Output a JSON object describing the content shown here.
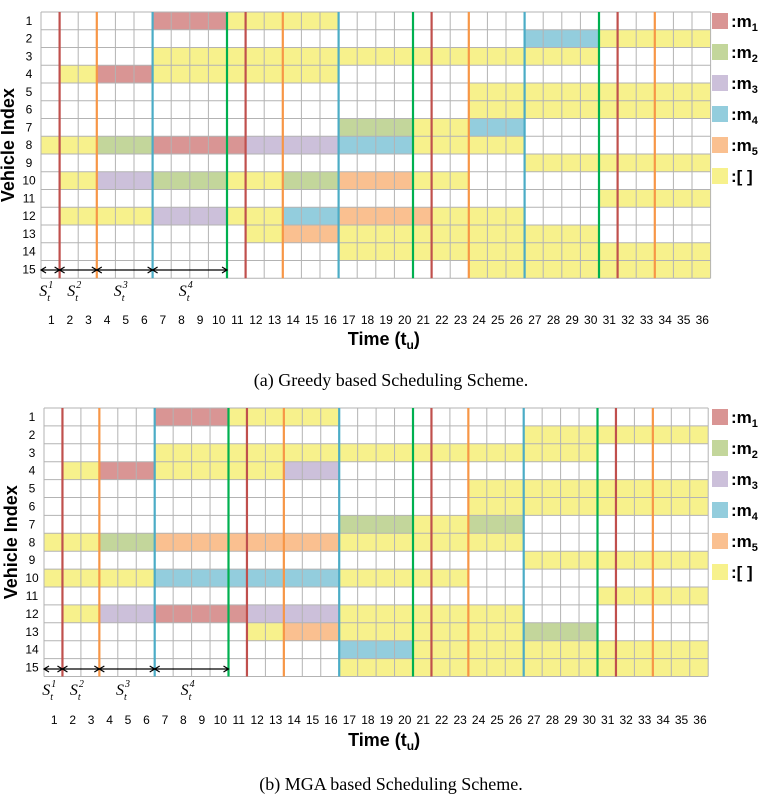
{
  "colors": {
    "m1": "#d99594",
    "m2": "#c3d69b",
    "m3": "#ccc0da",
    "m4": "#93cddd",
    "m5": "#fac090",
    "empty": "#f7f18c",
    "grid": "#b3b3b3",
    "dividers": [
      "#c0504d",
      "#f79646",
      "#4bacc6",
      "#00b050"
    ]
  },
  "legend": [
    {
      "key": "m1",
      "label": ":m",
      "sub": "1"
    },
    {
      "key": "m2",
      "label": ":m",
      "sub": "2"
    },
    {
      "key": "m3",
      "label": ":m",
      "sub": "3"
    },
    {
      "key": "m4",
      "label": ":m",
      "sub": "4"
    },
    {
      "key": "m5",
      "label": ":m",
      "sub": "5"
    },
    {
      "key": "empty",
      "label": ":[ ]",
      "sub": ""
    }
  ],
  "chart_data": [
    {
      "type": "heatmap",
      "caption": "(a) Greedy based Scheduling Scheme.",
      "xlabel": "Time (t",
      "xlabel_sub": "u",
      "xlabel_end": ")",
      "ylabel": "Vehicle Index",
      "x_ticks": [
        1,
        2,
        3,
        4,
        5,
        6,
        7,
        8,
        9,
        10,
        11,
        12,
        13,
        14,
        15,
        16,
        17,
        18,
        19,
        20,
        21,
        22,
        23,
        24,
        25,
        26,
        27,
        28,
        29,
        30,
        31,
        32,
        33,
        34,
        35,
        36
      ],
      "y_ticks": [
        1,
        2,
        3,
        4,
        5,
        6,
        7,
        8,
        9,
        10,
        11,
        12,
        13,
        14,
        15
      ],
      "dividers": [
        {
          "after": 1,
          "color": "red"
        },
        {
          "after": 3,
          "color": "orange"
        },
        {
          "after": 6,
          "color": "blue"
        },
        {
          "after": 10,
          "color": "green"
        },
        {
          "after": 11,
          "color": "red"
        },
        {
          "after": 13,
          "color": "orange"
        },
        {
          "after": 16,
          "color": "blue"
        },
        {
          "after": 20,
          "color": "green"
        },
        {
          "after": 21,
          "color": "red"
        },
        {
          "after": 23,
          "color": "orange"
        },
        {
          "after": 26,
          "color": "blue"
        },
        {
          "after": 30,
          "color": "green"
        },
        {
          "after": 31,
          "color": "red"
        },
        {
          "after": 33,
          "color": "orange"
        }
      ],
      "s_labels": [
        {
          "text": "S",
          "sup": "1",
          "sub": "t",
          "from": 1,
          "to": 1
        },
        {
          "text": "S",
          "sup": "2",
          "sub": "t",
          "from": 2,
          "to": 3
        },
        {
          "text": "S",
          "sup": "3",
          "sub": "t",
          "from": 4,
          "to": 6
        },
        {
          "text": "S",
          "sup": "4",
          "sub": "t",
          "from": 7,
          "to": 10
        }
      ],
      "cells": [
        {
          "v": 1,
          "s": 7,
          "e": 10,
          "m": "m1"
        },
        {
          "v": 1,
          "s": 11,
          "e": 16,
          "m": "empty"
        },
        {
          "v": 2,
          "s": 27,
          "e": 30,
          "m": "m4"
        },
        {
          "v": 2,
          "s": 31,
          "e": 36,
          "m": "empty"
        },
        {
          "v": 3,
          "s": 7,
          "e": 30,
          "m": "empty"
        },
        {
          "v": 4,
          "s": 2,
          "e": 3,
          "m": "empty"
        },
        {
          "v": 4,
          "s": 4,
          "e": 6,
          "m": "m1"
        },
        {
          "v": 4,
          "s": 7,
          "e": 16,
          "m": "empty"
        },
        {
          "v": 5,
          "s": 24,
          "e": 36,
          "m": "empty"
        },
        {
          "v": 6,
          "s": 24,
          "e": 36,
          "m": "empty"
        },
        {
          "v": 7,
          "s": 17,
          "e": 20,
          "m": "m2"
        },
        {
          "v": 7,
          "s": 21,
          "e": 23,
          "m": "empty"
        },
        {
          "v": 7,
          "s": 24,
          "e": 26,
          "m": "m4"
        },
        {
          "v": 8,
          "s": 1,
          "e": 3,
          "m": "empty"
        },
        {
          "v": 8,
          "s": 4,
          "e": 6,
          "m": "m2"
        },
        {
          "v": 8,
          "s": 7,
          "e": 11,
          "m": "m1"
        },
        {
          "v": 8,
          "s": 12,
          "e": 16,
          "m": "m3"
        },
        {
          "v": 8,
          "s": 17,
          "e": 20,
          "m": "m4"
        },
        {
          "v": 8,
          "s": 21,
          "e": 26,
          "m": "empty"
        },
        {
          "v": 9,
          "s": 27,
          "e": 36,
          "m": "empty"
        },
        {
          "v": 10,
          "s": 2,
          "e": 3,
          "m": "empty"
        },
        {
          "v": 10,
          "s": 4,
          "e": 6,
          "m": "m3"
        },
        {
          "v": 10,
          "s": 7,
          "e": 10,
          "m": "m2"
        },
        {
          "v": 10,
          "s": 11,
          "e": 13,
          "m": "empty"
        },
        {
          "v": 10,
          "s": 14,
          "e": 16,
          "m": "m2"
        },
        {
          "v": 10,
          "s": 17,
          "e": 20,
          "m": "m5"
        },
        {
          "v": 10,
          "s": 21,
          "e": 23,
          "m": "empty"
        },
        {
          "v": 11,
          "s": 31,
          "e": 36,
          "m": "empty"
        },
        {
          "v": 12,
          "s": 2,
          "e": 6,
          "m": "empty"
        },
        {
          "v": 12,
          "s": 7,
          "e": 10,
          "m": "m3"
        },
        {
          "v": 12,
          "s": 11,
          "e": 13,
          "m": "empty"
        },
        {
          "v": 12,
          "s": 14,
          "e": 16,
          "m": "m4"
        },
        {
          "v": 12,
          "s": 17,
          "e": 21,
          "m": "m5"
        },
        {
          "v": 12,
          "s": 22,
          "e": 26,
          "m": "empty"
        },
        {
          "v": 13,
          "s": 12,
          "e": 13,
          "m": "empty"
        },
        {
          "v": 13,
          "s": 14,
          "e": 16,
          "m": "m5"
        },
        {
          "v": 13,
          "s": 17,
          "e": 30,
          "m": "empty"
        },
        {
          "v": 14,
          "s": 17,
          "e": 36,
          "m": "empty"
        },
        {
          "v": 15,
          "s": 24,
          "e": 36,
          "m": "empty"
        }
      ]
    },
    {
      "type": "heatmap",
      "caption": "(b) MGA based Scheduling Scheme.",
      "xlabel": "Time (t",
      "xlabel_sub": "u",
      "xlabel_end": ")",
      "ylabel": "Vehicle Index",
      "x_ticks": [
        1,
        2,
        3,
        4,
        5,
        6,
        7,
        8,
        9,
        10,
        11,
        12,
        13,
        14,
        15,
        16,
        17,
        18,
        19,
        20,
        21,
        22,
        23,
        24,
        25,
        26,
        27,
        28,
        29,
        30,
        31,
        32,
        33,
        34,
        35,
        36
      ],
      "y_ticks": [
        1,
        2,
        3,
        4,
        5,
        6,
        7,
        8,
        9,
        10,
        11,
        12,
        13,
        14,
        15
      ],
      "dividers": [
        {
          "after": 1,
          "color": "red"
        },
        {
          "after": 3,
          "color": "orange"
        },
        {
          "after": 6,
          "color": "blue"
        },
        {
          "after": 10,
          "color": "green"
        },
        {
          "after": 11,
          "color": "red"
        },
        {
          "after": 13,
          "color": "orange"
        },
        {
          "after": 16,
          "color": "blue"
        },
        {
          "after": 20,
          "color": "green"
        },
        {
          "after": 21,
          "color": "red"
        },
        {
          "after": 23,
          "color": "orange"
        },
        {
          "after": 26,
          "color": "blue"
        },
        {
          "after": 30,
          "color": "green"
        },
        {
          "after": 31,
          "color": "red"
        },
        {
          "after": 33,
          "color": "orange"
        }
      ],
      "s_labels": [
        {
          "text": "S",
          "sup": "1",
          "sub": "t",
          "from": 1,
          "to": 1
        },
        {
          "text": "S",
          "sup": "2",
          "sub": "t",
          "from": 2,
          "to": 3
        },
        {
          "text": "S",
          "sup": "3",
          "sub": "t",
          "from": 4,
          "to": 6
        },
        {
          "text": "S",
          "sup": "4",
          "sub": "t",
          "from": 7,
          "to": 10
        }
      ],
      "cells": [
        {
          "v": 1,
          "s": 7,
          "e": 10,
          "m": "m1"
        },
        {
          "v": 1,
          "s": 11,
          "e": 16,
          "m": "empty"
        },
        {
          "v": 2,
          "s": 27,
          "e": 36,
          "m": "empty"
        },
        {
          "v": 3,
          "s": 7,
          "e": 30,
          "m": "empty"
        },
        {
          "v": 4,
          "s": 2,
          "e": 3,
          "m": "empty"
        },
        {
          "v": 4,
          "s": 4,
          "e": 6,
          "m": "m1"
        },
        {
          "v": 4,
          "s": 7,
          "e": 13,
          "m": "empty"
        },
        {
          "v": 4,
          "s": 14,
          "e": 16,
          "m": "m3"
        },
        {
          "v": 5,
          "s": 24,
          "e": 36,
          "m": "empty"
        },
        {
          "v": 6,
          "s": 24,
          "e": 36,
          "m": "empty"
        },
        {
          "v": 7,
          "s": 17,
          "e": 20,
          "m": "m2"
        },
        {
          "v": 7,
          "s": 21,
          "e": 23,
          "m": "empty"
        },
        {
          "v": 7,
          "s": 24,
          "e": 26,
          "m": "m2"
        },
        {
          "v": 8,
          "s": 1,
          "e": 3,
          "m": "empty"
        },
        {
          "v": 8,
          "s": 4,
          "e": 6,
          "m": "m2"
        },
        {
          "v": 8,
          "s": 7,
          "e": 16,
          "m": "m5"
        },
        {
          "v": 8,
          "s": 17,
          "e": 26,
          "m": "empty"
        },
        {
          "v": 9,
          "s": 27,
          "e": 36,
          "m": "empty"
        },
        {
          "v": 10,
          "s": 1,
          "e": 6,
          "m": "empty"
        },
        {
          "v": 10,
          "s": 7,
          "e": 10,
          "m": "m4"
        },
        {
          "v": 10,
          "s": 11,
          "e": 16,
          "m": "m4"
        },
        {
          "v": 10,
          "s": 17,
          "e": 23,
          "m": "empty"
        },
        {
          "v": 11,
          "s": 31,
          "e": 36,
          "m": "empty"
        },
        {
          "v": 12,
          "s": 2,
          "e": 3,
          "m": "empty"
        },
        {
          "v": 12,
          "s": 4,
          "e": 6,
          "m": "m3"
        },
        {
          "v": 12,
          "s": 7,
          "e": 11,
          "m": "m1"
        },
        {
          "v": 12,
          "s": 12,
          "e": 16,
          "m": "m3"
        },
        {
          "v": 12,
          "s": 17,
          "e": 26,
          "m": "empty"
        },
        {
          "v": 13,
          "s": 12,
          "e": 13,
          "m": "empty"
        },
        {
          "v": 13,
          "s": 14,
          "e": 16,
          "m": "m5"
        },
        {
          "v": 13,
          "s": 17,
          "e": 26,
          "m": "empty"
        },
        {
          "v": 13,
          "s": 27,
          "e": 30,
          "m": "m2"
        },
        {
          "v": 14,
          "s": 17,
          "e": 20,
          "m": "m4"
        },
        {
          "v": 14,
          "s": 21,
          "e": 36,
          "m": "empty"
        },
        {
          "v": 15,
          "s": 17,
          "e": 36,
          "m": "empty"
        }
      ]
    }
  ]
}
